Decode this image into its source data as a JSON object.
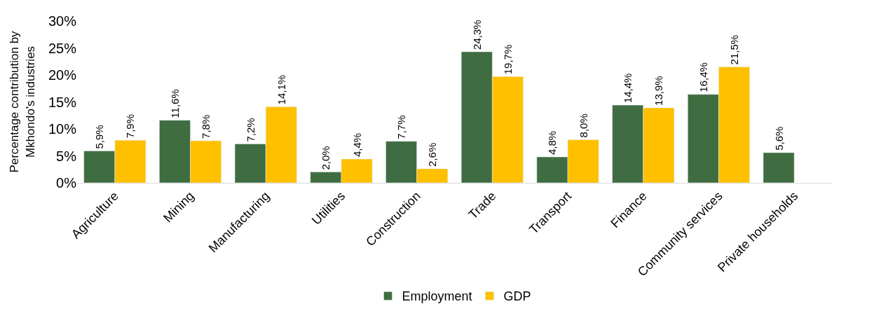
{
  "chart_data": {
    "type": "bar",
    "ylabel": "Percentage contribution by\nMkhondo's industries",
    "categories": [
      "Agriculture",
      "Mining",
      "Manufacturing",
      "Utilities",
      "Construction",
      "Trade",
      "Transport",
      "Finance",
      "Community services",
      "Private households"
    ],
    "series": [
      {
        "name": "Employment",
        "color": "#3f6d41",
        "values": [
          5.9,
          11.6,
          7.2,
          2.0,
          7.7,
          24.3,
          4.8,
          14.4,
          16.4,
          5.6
        ],
        "value_labels": [
          "5,9%",
          "11,6%",
          "7,2%",
          "2,0%",
          "7,7%",
          "24,3%",
          "4,8%",
          "14,4%",
          "16,4%",
          "5,6%"
        ]
      },
      {
        "name": "GDP",
        "color": "#ffc000",
        "values": [
          7.9,
          7.8,
          14.1,
          4.4,
          2.6,
          19.7,
          8.0,
          13.9,
          21.5,
          null
        ],
        "value_labels": [
          "7,9%",
          "7,8%",
          "14,1%",
          "4,4%",
          "2,6%",
          "19,7%",
          "8,0%",
          "13,9%",
          "21,5%",
          null
        ]
      }
    ],
    "ylim": [
      0,
      30
    ],
    "yticks": [
      {
        "value": 0,
        "label": "0%"
      },
      {
        "value": 5,
        "label": "5%"
      },
      {
        "value": 10,
        "label": "10%"
      },
      {
        "value": 15,
        "label": "15%"
      },
      {
        "value": 20,
        "label": "20%"
      },
      {
        "value": 25,
        "label": "25%"
      },
      {
        "value": 30,
        "label": "30%"
      }
    ],
    "legend": "bottom"
  }
}
